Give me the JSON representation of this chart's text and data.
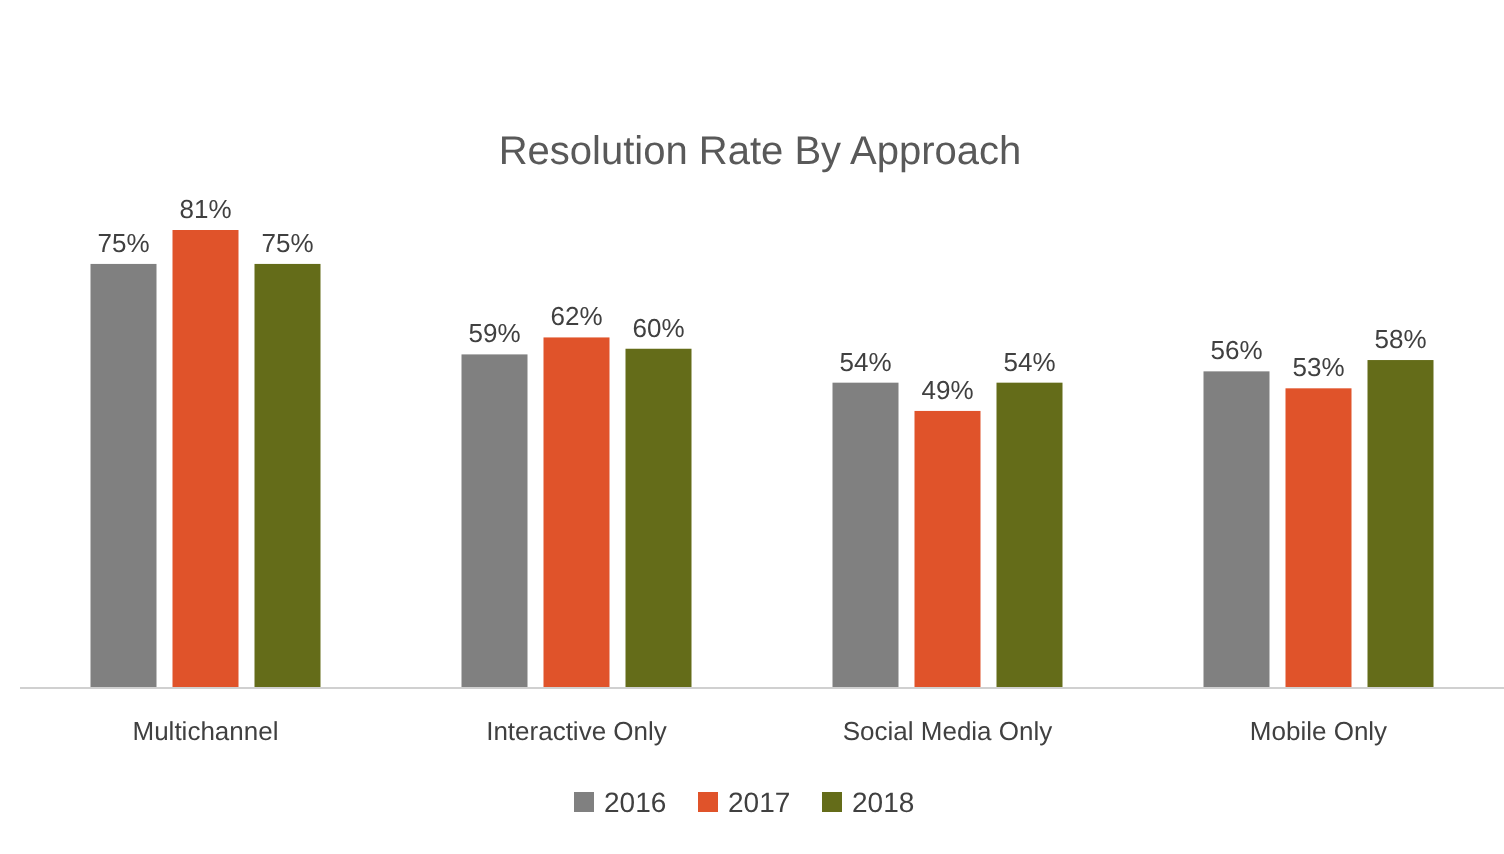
{
  "chart_data": {
    "type": "bar",
    "title": "Resolution Rate By Approach",
    "categories": [
      "Multichannel",
      "Interactive Only",
      "Social Media Only",
      "Mobile Only"
    ],
    "series": [
      {
        "name": "2016",
        "color": "#808080",
        "values": [
          75,
          59,
          54,
          56
        ],
        "value_labels": [
          "75%",
          "59%",
          "54%",
          "56%"
        ]
      },
      {
        "name": "2017",
        "color": "#e0532a",
        "values": [
          81,
          62,
          49,
          53
        ],
        "value_labels": [
          "81%",
          "62%",
          "49%",
          "53%"
        ]
      },
      {
        "name": "2018",
        "color": "#646c19",
        "values": [
          75,
          60,
          54,
          58
        ],
        "value_labels": [
          "75%",
          "60%",
          "54%",
          "58%"
        ]
      }
    ],
    "legend": "bottom"
  }
}
